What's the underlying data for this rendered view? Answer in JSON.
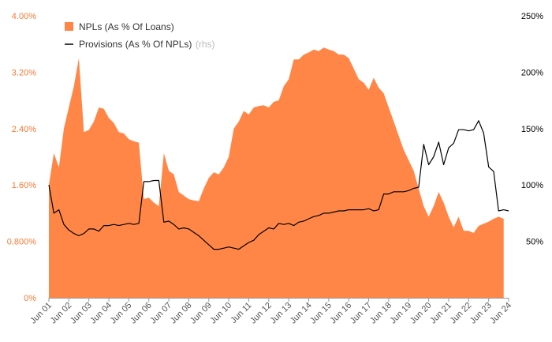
{
  "chart_data": {
    "type": "area",
    "grid": false,
    "legend_position": "top-left",
    "colors": {
      "npl": "#ff8647",
      "provisions": "#000000",
      "left_axis_text": "#f47a38",
      "right_axis_text": "#000000"
    },
    "legend": {
      "npl_label": "NPLs (As % Of Loans)",
      "prov_label": "Provisions (As % Of NPLs)",
      "prov_note": "(rhs)"
    },
    "y_left": {
      "ylim": [
        0,
        4.0
      ],
      "ticks": [
        "0%",
        "0.800%",
        "1.60%",
        "2.40%",
        "3.20%",
        "4.00%"
      ],
      "tick_values": [
        0,
        0.8,
        1.6,
        2.4,
        3.2,
        4.0
      ]
    },
    "y_right": {
      "ylim": [
        0,
        250
      ],
      "ticks": [
        "50%",
        "100%",
        "150%",
        "200%",
        "250%"
      ],
      "tick_values": [
        50,
        100,
        150,
        200,
        250
      ]
    },
    "x_labels": [
      "Jun 01",
      "Jun 02",
      "Jun 03",
      "Jun 04",
      "Jun 05",
      "Jun 06",
      "Jun 07",
      "Jun 08",
      "Jun 09",
      "Jun 10",
      "Jun 11",
      "Jun 12",
      "Jun 13",
      "Jun 14",
      "Jun 15",
      "Jun 16",
      "Jun 17",
      "Jun 18",
      "Jun 19",
      "Jun 20",
      "Jun 21",
      "Jun 22",
      "Jun 23",
      "Jun 24"
    ],
    "x_range": [
      2001.5,
      2024.5
    ],
    "series": [
      {
        "name": "NPLs (As % Of Loans)",
        "axis": "left",
        "style": "area",
        "points": [
          [
            2001.5,
            1.6
          ],
          [
            2001.75,
            2.05
          ],
          [
            2002.0,
            1.85
          ],
          [
            2002.25,
            2.4
          ],
          [
            2002.5,
            2.7
          ],
          [
            2002.75,
            3.0
          ],
          [
            2003.0,
            3.4
          ],
          [
            2003.25,
            2.35
          ],
          [
            2003.5,
            2.38
          ],
          [
            2003.75,
            2.5
          ],
          [
            2004.0,
            2.7
          ],
          [
            2004.25,
            2.68
          ],
          [
            2004.5,
            2.55
          ],
          [
            2004.75,
            2.48
          ],
          [
            2005.0,
            2.35
          ],
          [
            2005.25,
            2.33
          ],
          [
            2005.5,
            2.25
          ],
          [
            2005.75,
            2.22
          ],
          [
            2006.0,
            2.2
          ],
          [
            2006.25,
            1.4
          ],
          [
            2006.5,
            1.42
          ],
          [
            2006.75,
            1.35
          ],
          [
            2007.0,
            1.3
          ],
          [
            2007.25,
            2.05
          ],
          [
            2007.5,
            1.8
          ],
          [
            2007.75,
            1.75
          ],
          [
            2008.0,
            1.5
          ],
          [
            2008.25,
            1.45
          ],
          [
            2008.5,
            1.4
          ],
          [
            2008.75,
            1.38
          ],
          [
            2009.0,
            1.37
          ],
          [
            2009.25,
            1.55
          ],
          [
            2009.5,
            1.7
          ],
          [
            2009.75,
            1.78
          ],
          [
            2010.0,
            1.75
          ],
          [
            2010.25,
            1.85
          ],
          [
            2010.5,
            2.0
          ],
          [
            2010.75,
            2.4
          ],
          [
            2011.0,
            2.5
          ],
          [
            2011.25,
            2.65
          ],
          [
            2011.5,
            2.6
          ],
          [
            2011.75,
            2.7
          ],
          [
            2012.0,
            2.72
          ],
          [
            2012.25,
            2.73
          ],
          [
            2012.5,
            2.7
          ],
          [
            2012.75,
            2.78
          ],
          [
            2013.0,
            2.8
          ],
          [
            2013.25,
            3.0
          ],
          [
            2013.5,
            3.1
          ],
          [
            2013.75,
            3.38
          ],
          [
            2014.0,
            3.38
          ],
          [
            2014.25,
            3.45
          ],
          [
            2014.5,
            3.48
          ],
          [
            2014.75,
            3.52
          ],
          [
            2015.0,
            3.5
          ],
          [
            2015.25,
            3.55
          ],
          [
            2015.5,
            3.52
          ],
          [
            2015.75,
            3.5
          ],
          [
            2016.0,
            3.45
          ],
          [
            2016.25,
            3.45
          ],
          [
            2016.5,
            3.4
          ],
          [
            2016.75,
            3.25
          ],
          [
            2017.0,
            3.1
          ],
          [
            2017.25,
            3.05
          ],
          [
            2017.5,
            2.95
          ],
          [
            2017.75,
            3.12
          ],
          [
            2018.0,
            2.98
          ],
          [
            2018.25,
            2.9
          ],
          [
            2018.5,
            2.7
          ],
          [
            2018.75,
            2.5
          ],
          [
            2019.0,
            2.3
          ],
          [
            2019.25,
            2.1
          ],
          [
            2019.5,
            1.95
          ],
          [
            2019.75,
            1.8
          ],
          [
            2020.0,
            1.55
          ],
          [
            2020.25,
            1.3
          ],
          [
            2020.5,
            1.15
          ],
          [
            2020.75,
            1.3
          ],
          [
            2021.0,
            1.5
          ],
          [
            2021.25,
            1.35
          ],
          [
            2021.5,
            1.15
          ],
          [
            2021.75,
            1.0
          ],
          [
            2022.0,
            1.15
          ],
          [
            2022.25,
            0.95
          ],
          [
            2022.5,
            0.95
          ],
          [
            2022.75,
            0.92
          ],
          [
            2023.0,
            1.02
          ],
          [
            2023.25,
            1.05
          ],
          [
            2023.5,
            1.08
          ],
          [
            2023.75,
            1.12
          ],
          [
            2024.0,
            1.15
          ],
          [
            2024.25,
            1.12
          ]
        ]
      },
      {
        "name": "Provisions (As % Of NPLs)",
        "axis": "right",
        "style": "line",
        "points": [
          [
            2001.5,
            100
          ],
          [
            2001.75,
            75
          ],
          [
            2002.0,
            78
          ],
          [
            2002.25,
            65
          ],
          [
            2002.5,
            60
          ],
          [
            2002.75,
            57
          ],
          [
            2003.0,
            55
          ],
          [
            2003.25,
            57
          ],
          [
            2003.5,
            61
          ],
          [
            2003.75,
            61
          ],
          [
            2004.0,
            59
          ],
          [
            2004.25,
            64
          ],
          [
            2004.5,
            64
          ],
          [
            2004.75,
            65
          ],
          [
            2005.0,
            64
          ],
          [
            2005.25,
            65
          ],
          [
            2005.5,
            66
          ],
          [
            2005.75,
            65
          ],
          [
            2006.0,
            66
          ],
          [
            2006.25,
            103
          ],
          [
            2006.5,
            103
          ],
          [
            2006.75,
            104
          ],
          [
            2007.0,
            104
          ],
          [
            2007.25,
            67
          ],
          [
            2007.5,
            68
          ],
          [
            2007.75,
            65
          ],
          [
            2008.0,
            61
          ],
          [
            2008.25,
            62
          ],
          [
            2008.5,
            61
          ],
          [
            2008.75,
            58
          ],
          [
            2009.0,
            55
          ],
          [
            2009.25,
            51
          ],
          [
            2009.5,
            47
          ],
          [
            2009.75,
            43
          ],
          [
            2010.0,
            43
          ],
          [
            2010.25,
            44
          ],
          [
            2010.5,
            45
          ],
          [
            2010.75,
            44
          ],
          [
            2011.0,
            43
          ],
          [
            2011.25,
            46
          ],
          [
            2011.5,
            49
          ],
          [
            2011.75,
            51
          ],
          [
            2012.0,
            56
          ],
          [
            2012.25,
            59
          ],
          [
            2012.5,
            62
          ],
          [
            2012.75,
            61
          ],
          [
            2013.0,
            66
          ],
          [
            2013.25,
            65
          ],
          [
            2013.5,
            66
          ],
          [
            2013.75,
            64
          ],
          [
            2014.0,
            67
          ],
          [
            2014.25,
            68
          ],
          [
            2014.5,
            70
          ],
          [
            2014.75,
            72
          ],
          [
            2015.0,
            73
          ],
          [
            2015.25,
            75
          ],
          [
            2015.5,
            75
          ],
          [
            2015.75,
            76
          ],
          [
            2016.0,
            77
          ],
          [
            2016.25,
            77
          ],
          [
            2016.5,
            78
          ],
          [
            2016.75,
            78
          ],
          [
            2017.0,
            78
          ],
          [
            2017.25,
            78
          ],
          [
            2017.5,
            79
          ],
          [
            2017.75,
            77
          ],
          [
            2018.0,
            78
          ],
          [
            2018.25,
            92
          ],
          [
            2018.5,
            92
          ],
          [
            2018.75,
            94
          ],
          [
            2019.0,
            94
          ],
          [
            2019.25,
            94
          ],
          [
            2019.5,
            95
          ],
          [
            2019.75,
            97
          ],
          [
            2020.0,
            98
          ],
          [
            2020.25,
            136
          ],
          [
            2020.5,
            118
          ],
          [
            2020.75,
            125
          ],
          [
            2021.0,
            138
          ],
          [
            2021.25,
            118
          ],
          [
            2021.5,
            133
          ],
          [
            2021.75,
            137
          ],
          [
            2022.0,
            149
          ],
          [
            2022.25,
            149
          ],
          [
            2022.5,
            148
          ],
          [
            2022.75,
            149
          ],
          [
            2023.0,
            157
          ],
          [
            2023.25,
            146
          ],
          [
            2023.5,
            116
          ],
          [
            2023.75,
            112
          ],
          [
            2024.0,
            77
          ],
          [
            2024.25,
            78
          ],
          [
            2024.5,
            77
          ]
        ]
      }
    ]
  }
}
